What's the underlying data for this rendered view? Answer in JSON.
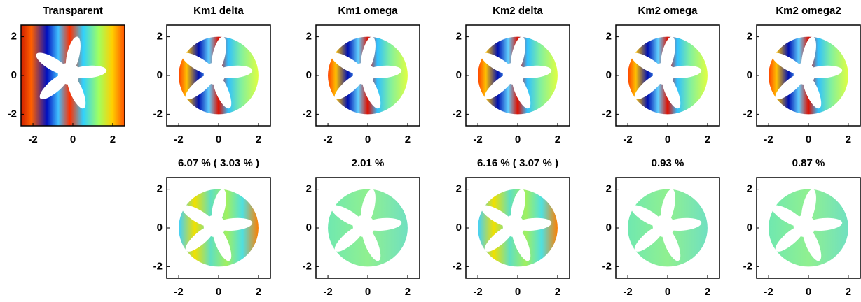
{
  "chart_data": [
    {
      "type": "heatmap",
      "title": "Transparent",
      "xlim": [
        -2.6,
        2.6
      ],
      "ylim": [
        -2.6,
        2.6
      ],
      "xticks": [
        -2,
        0,
        2
      ],
      "yticks": [
        -2,
        0,
        2
      ]
    },
    {
      "type": "heatmap",
      "title": "Km1 delta",
      "xlim": [
        -2.6,
        2.6
      ],
      "ylim": [
        -2.6,
        2.6
      ],
      "xticks": [
        -2,
        0,
        2
      ],
      "yticks": [
        -2,
        0,
        2
      ]
    },
    {
      "type": "heatmap",
      "title": "Km1 omega",
      "xlim": [
        -2.6,
        2.6
      ],
      "ylim": [
        -2.6,
        2.6
      ],
      "xticks": [
        -2,
        0,
        2
      ],
      "yticks": [
        -2,
        0,
        2
      ]
    },
    {
      "type": "heatmap",
      "title": "Km2 delta",
      "xlim": [
        -2.6,
        2.6
      ],
      "ylim": [
        -2.6,
        2.6
      ],
      "xticks": [
        -2,
        0,
        2
      ],
      "yticks": [
        -2,
        0,
        2
      ]
    },
    {
      "type": "heatmap",
      "title": "Km2 omega",
      "xlim": [
        -2.6,
        2.6
      ],
      "ylim": [
        -2.6,
        2.6
      ],
      "xticks": [
        -2,
        0,
        2
      ],
      "yticks": [
        -2,
        0,
        2
      ]
    },
    {
      "type": "heatmap",
      "title": "Km2 omega2",
      "xlim": [
        -2.6,
        2.6
      ],
      "ylim": [
        -2.6,
        2.6
      ],
      "xticks": [
        -2,
        0,
        2
      ],
      "yticks": [
        -2,
        0,
        2
      ]
    },
    {
      "type": "heatmap",
      "title": "6.07 % ( 3.03 % )",
      "xlim": [
        -2.6,
        2.6
      ],
      "ylim": [
        -2.6,
        2.6
      ],
      "xticks": [
        -2,
        0,
        2
      ],
      "yticks": [
        -2,
        0,
        2
      ]
    },
    {
      "type": "heatmap",
      "title": "2.01 %",
      "xlim": [
        -2.6,
        2.6
      ],
      "ylim": [
        -2.6,
        2.6
      ],
      "xticks": [
        -2,
        0,
        2
      ],
      "yticks": [
        -2,
        0,
        2
      ]
    },
    {
      "type": "heatmap",
      "title": "6.16 % ( 3.07 % )",
      "xlim": [
        -2.6,
        2.6
      ],
      "ylim": [
        -2.6,
        2.6
      ],
      "xticks": [
        -2,
        0,
        2
      ],
      "yticks": [
        -2,
        0,
        2
      ]
    },
    {
      "type": "heatmap",
      "title": "0.93 %",
      "xlim": [
        -2.6,
        2.6
      ],
      "ylim": [
        -2.6,
        2.6
      ],
      "xticks": [
        -2,
        0,
        2
      ],
      "yticks": [
        -2,
        0,
        2
      ]
    },
    {
      "type": "heatmap",
      "title": "0.87 %",
      "xlim": [
        -2.6,
        2.6
      ],
      "ylim": [
        -2.6,
        2.6
      ],
      "xticks": [
        -2,
        0,
        2
      ],
      "yticks": [
        -2,
        0,
        2
      ]
    }
  ]
}
